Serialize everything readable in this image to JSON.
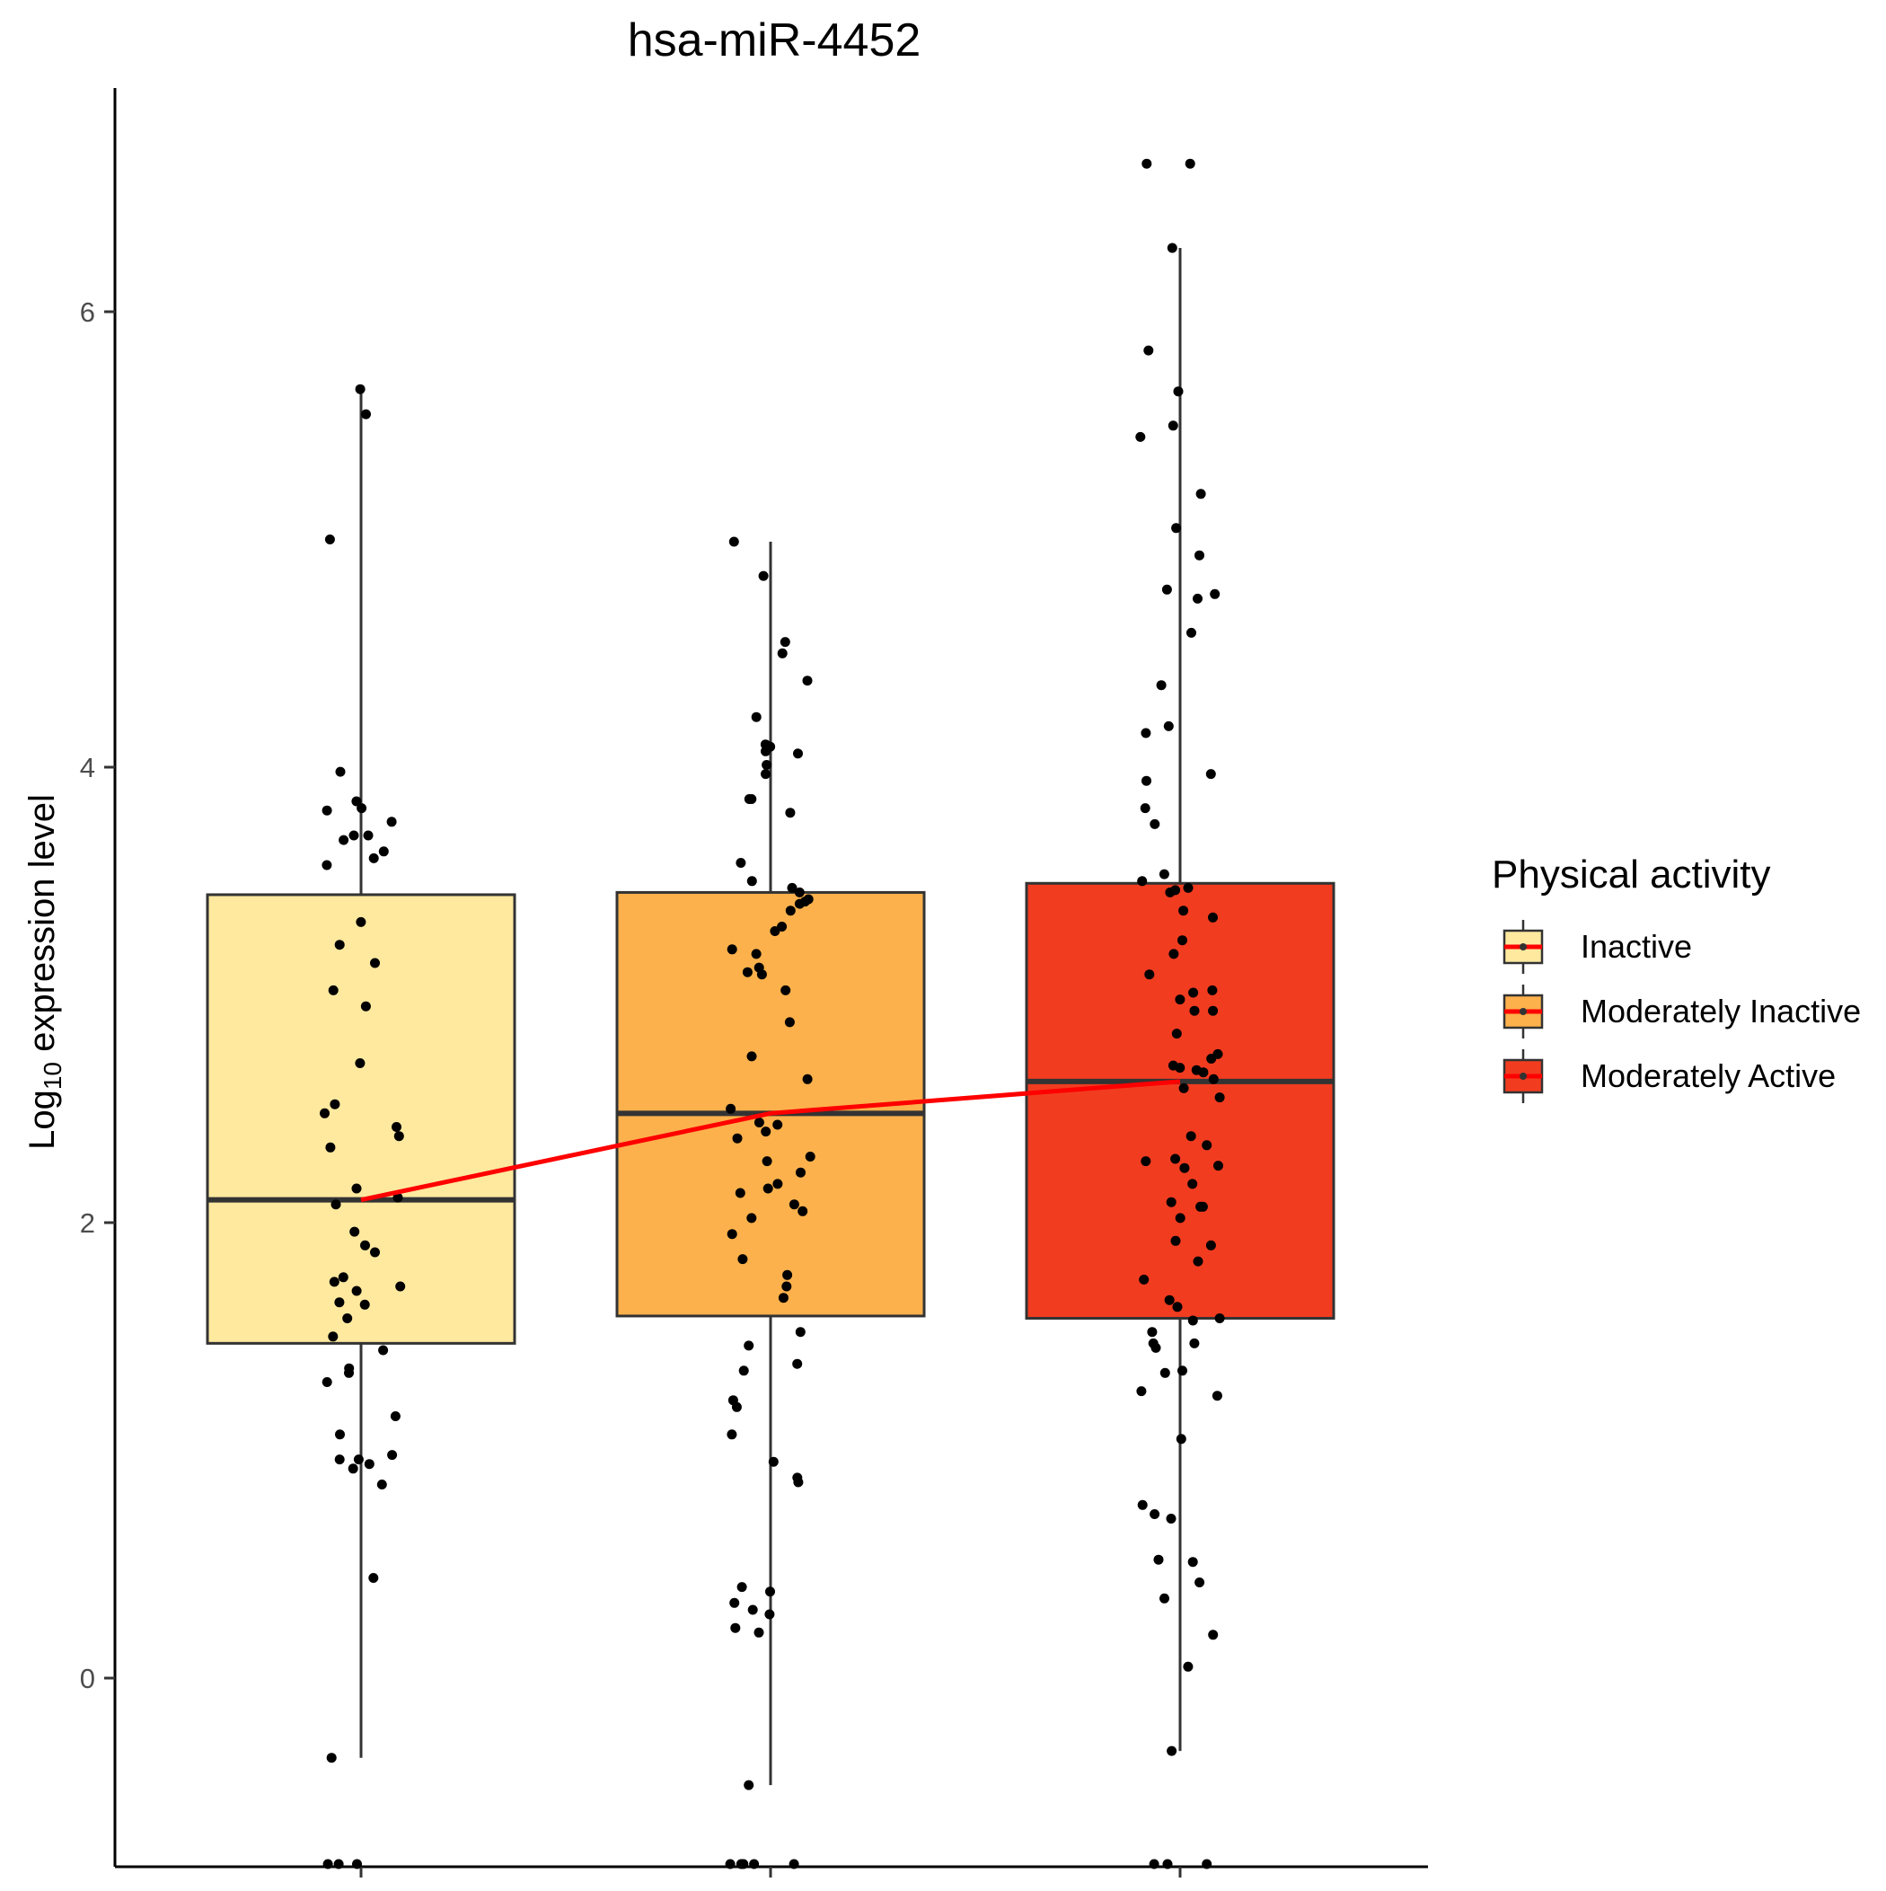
{
  "chart_data": {
    "type": "box",
    "title": "hsa-miR-4452",
    "ylabel_base": "Log",
    "ylabel_sub": "10",
    "ylabel_rest": " expression level",
    "xlabel": "",
    "ylim": [
      -0.82,
      7.2
    ],
    "yticks": [
      0,
      2,
      4,
      6
    ],
    "grid": false,
    "legend": {
      "title": "Physical activity",
      "position": "right",
      "items": [
        "Inactive",
        "Moderately Inactive",
        "Moderately Active"
      ]
    },
    "trend_line_color": "#ff0000",
    "series": [
      {
        "name": "Inactive",
        "color": "#fee99f",
        "whisker_low": -0.35,
        "q1": 1.47,
        "median": 2.1,
        "q3": 3.44,
        "whisker_high": 5.66,
        "points": [
          5.66,
          5.55,
          5.0,
          3.98,
          3.85,
          3.82,
          3.81,
          3.76,
          3.7,
          3.7,
          3.68,
          3.63,
          3.6,
          3.57,
          3.32,
          3.22,
          3.14,
          3.02,
          2.95,
          2.7,
          2.52,
          2.48,
          2.42,
          2.38,
          2.33,
          2.15,
          2.11,
          2.08,
          1.96,
          1.9,
          1.87,
          1.76,
          1.74,
          1.72,
          1.7,
          1.65,
          1.64,
          1.58,
          1.5,
          1.44,
          1.36,
          1.34,
          1.3,
          1.15,
          1.07,
          0.98,
          0.96,
          0.96,
          0.94,
          0.92,
          0.85,
          0.44,
          -0.35,
          -0.82,
          -0.82,
          -0.82
        ]
      },
      {
        "name": "Moderately Inactive",
        "color": "#fcb14c",
        "whisker_low": -0.47,
        "q1": 1.59,
        "median": 2.48,
        "q3": 3.45,
        "whisker_high": 4.99,
        "points": [
          4.99,
          4.84,
          4.55,
          4.5,
          4.38,
          4.22,
          4.1,
          4.09,
          4.07,
          4.06,
          4.01,
          3.97,
          3.86,
          3.86,
          3.8,
          3.58,
          3.5,
          3.47,
          3.45,
          3.42,
          3.41,
          3.4,
          3.37,
          3.3,
          3.28,
          3.2,
          3.18,
          3.12,
          3.1,
          3.09,
          3.02,
          2.88,
          2.73,
          2.63,
          2.5,
          2.44,
          2.43,
          2.4,
          2.37,
          2.29,
          2.27,
          2.22,
          2.17,
          2.15,
          2.13,
          2.08,
          2.05,
          2.02,
          1.95,
          1.84,
          1.77,
          1.72,
          1.67,
          1.52,
          1.46,
          1.38,
          1.35,
          1.22,
          1.19,
          1.07,
          0.95,
          0.88,
          0.86,
          0.4,
          0.38,
          0.33,
          0.3,
          0.28,
          0.22,
          0.2,
          -0.47,
          -0.82,
          -0.82,
          -0.82,
          -0.82,
          -0.82
        ]
      },
      {
        "name": "Moderately Active",
        "color": "#f13c20",
        "whisker_low": -0.32,
        "q1": 1.58,
        "median": 2.62,
        "q3": 3.49,
        "whisker_high": 6.28,
        "points": [
          6.65,
          6.65,
          6.28,
          5.83,
          5.65,
          5.5,
          5.45,
          5.2,
          5.05,
          4.93,
          4.78,
          4.76,
          4.74,
          4.59,
          4.36,
          4.18,
          4.15,
          3.97,
          3.94,
          3.82,
          3.75,
          3.53,
          3.5,
          3.47,
          3.46,
          3.45,
          3.37,
          3.34,
          3.24,
          3.18,
          3.09,
          3.02,
          3.01,
          2.98,
          2.93,
          2.93,
          2.83,
          2.74,
          2.72,
          2.69,
          2.68,
          2.67,
          2.66,
          2.63,
          2.59,
          2.55,
          2.38,
          2.34,
          2.28,
          2.27,
          2.25,
          2.24,
          2.17,
          2.09,
          2.07,
          2.07,
          2.02,
          1.92,
          1.9,
          1.83,
          1.75,
          1.66,
          1.63,
          1.58,
          1.57,
          1.52,
          1.47,
          1.47,
          1.45,
          1.35,
          1.34,
          1.26,
          1.24,
          1.05,
          0.76,
          0.7,
          0.72,
          0.51,
          0.52,
          0.42,
          0.35,
          0.19,
          0.05,
          -0.32,
          -0.82,
          -0.82,
          -0.82
        ]
      }
    ]
  }
}
